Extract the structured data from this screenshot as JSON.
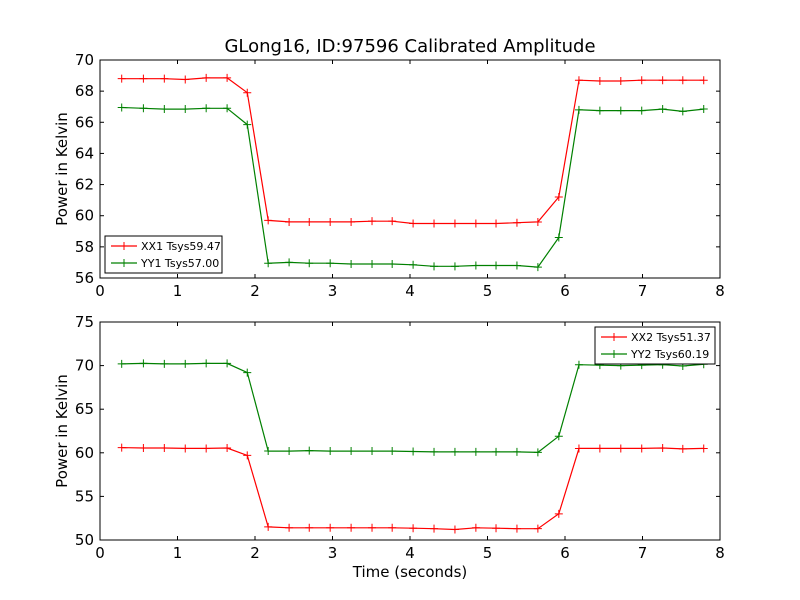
{
  "figure": {
    "title": "GLong16, ID:97596 Calibrated Amplitude",
    "xlabel": "Time (seconds)"
  },
  "chart_data": [
    {
      "type": "line",
      "title": "GLong16, ID:97596 Calibrated Amplitude",
      "xlabel": "",
      "ylabel": "Power in Kelvin",
      "xlim": [
        0,
        8
      ],
      "ylim": [
        56,
        70
      ],
      "xticks": [
        "0",
        "1",
        "2",
        "3",
        "4",
        "5",
        "6",
        "7",
        "8"
      ],
      "yticks": [
        "56",
        "58",
        "60",
        "62",
        "64",
        "66",
        "68",
        "70"
      ],
      "grid": false,
      "legend": "lower-left",
      "x": [
        0.28,
        0.56,
        0.83,
        1.1,
        1.37,
        1.64,
        1.9,
        2.17,
        2.44,
        2.7,
        2.97,
        3.24,
        3.51,
        3.77,
        4.04,
        4.31,
        4.58,
        4.85,
        5.11,
        5.38,
        5.65,
        5.92,
        6.18,
        6.45,
        6.72,
        6.99,
        7.26,
        7.52,
        7.79
      ],
      "series": [
        {
          "name": "XX1 Tsys59.47",
          "color": "#ff0000",
          "values": [
            68.8,
            68.8,
            68.8,
            68.75,
            68.85,
            68.85,
            67.9,
            59.7,
            59.6,
            59.6,
            59.6,
            59.6,
            59.65,
            59.65,
            59.5,
            59.5,
            59.5,
            59.5,
            59.5,
            59.55,
            59.6,
            61.2,
            68.7,
            68.65,
            68.65,
            68.7,
            68.7,
            68.7,
            68.7
          ]
        },
        {
          "name": "YY1 Tsys57.00",
          "color": "#008000",
          "values": [
            66.95,
            66.9,
            66.85,
            66.85,
            66.9,
            66.9,
            65.85,
            56.95,
            57.0,
            56.95,
            56.95,
            56.9,
            56.9,
            56.9,
            56.85,
            56.75,
            56.75,
            56.8,
            56.8,
            56.8,
            56.7,
            58.6,
            66.8,
            66.75,
            66.75,
            66.75,
            66.85,
            66.7,
            66.85
          ]
        }
      ]
    },
    {
      "type": "line",
      "title": "",
      "xlabel": "Time (seconds)",
      "ylabel": "Power in Kelvin",
      "xlim": [
        0,
        8
      ],
      "ylim": [
        50,
        75
      ],
      "xticks": [
        "0",
        "1",
        "2",
        "3",
        "4",
        "5",
        "6",
        "7",
        "8"
      ],
      "yticks": [
        "50",
        "55",
        "60",
        "65",
        "70",
        "75"
      ],
      "grid": false,
      "legend": "upper-right",
      "x": [
        0.28,
        0.56,
        0.83,
        1.1,
        1.37,
        1.64,
        1.9,
        2.17,
        2.44,
        2.7,
        2.97,
        3.24,
        3.51,
        3.77,
        4.04,
        4.31,
        4.58,
        4.85,
        5.11,
        5.38,
        5.65,
        5.92,
        6.18,
        6.45,
        6.72,
        6.99,
        7.26,
        7.52,
        7.79
      ],
      "series": [
        {
          "name": "XX2 Tsys51.37",
          "color": "#ff0000",
          "values": [
            60.6,
            60.55,
            60.55,
            60.5,
            60.5,
            60.55,
            59.7,
            51.5,
            51.4,
            51.4,
            51.4,
            51.4,
            51.4,
            51.4,
            51.35,
            51.3,
            51.2,
            51.4,
            51.35,
            51.3,
            51.3,
            53.0,
            60.5,
            60.5,
            60.5,
            60.5,
            60.55,
            60.45,
            60.5
          ]
        },
        {
          "name": "YY2 Tsys60.19",
          "color": "#008000",
          "values": [
            70.2,
            70.25,
            70.2,
            70.2,
            70.25,
            70.25,
            69.2,
            60.2,
            60.2,
            60.25,
            60.2,
            60.2,
            60.2,
            60.2,
            60.15,
            60.1,
            60.1,
            60.1,
            60.1,
            60.1,
            60.05,
            61.9,
            70.1,
            70.05,
            70.0,
            70.05,
            70.1,
            69.95,
            70.15
          ]
        }
      ]
    }
  ]
}
